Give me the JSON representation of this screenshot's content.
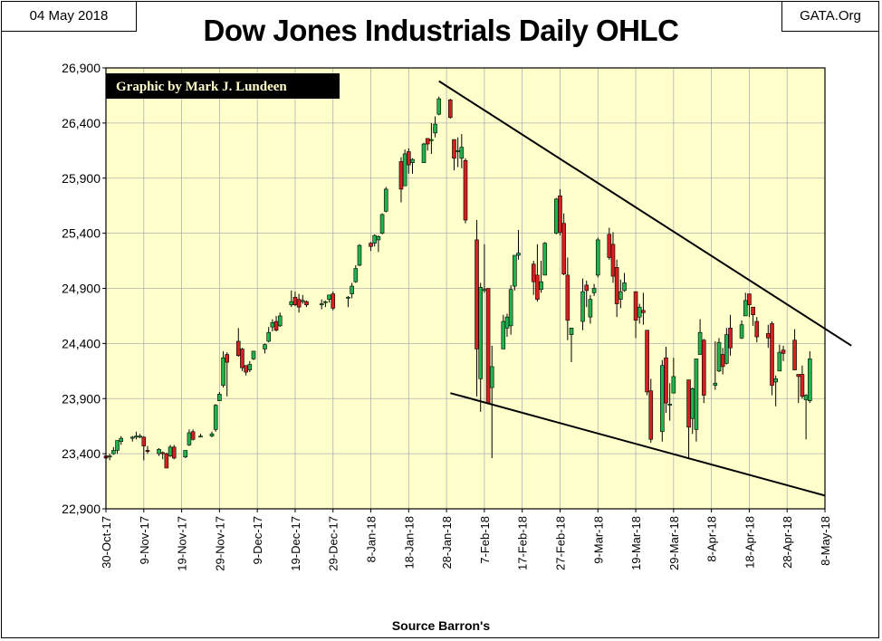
{
  "header": {
    "date": "04 May 2018",
    "site": "GATA.Org",
    "title": "Dow Jones Industrials Daily OHLC",
    "credit": "Graphic by Mark J. Lundeen",
    "source": "Source Barron's"
  },
  "colors": {
    "plot_bg": "#ffffcc",
    "up": "#22b14c",
    "down": "#d42020",
    "grid": "#b0b0b0",
    "trendline": "#000000"
  },
  "chart_data": {
    "type": "candlestick",
    "title": "Dow Jones Industrials Daily OHLC",
    "xlabel": "Source Barron's",
    "ylabel": "",
    "ylim": [
      22900,
      26900
    ],
    "yticks": [
      22900,
      23400,
      23900,
      24400,
      24900,
      25400,
      25900,
      26400,
      26900
    ],
    "ytick_labels": [
      "22,900",
      "23,400",
      "23,900",
      "24,400",
      "24,900",
      "25,400",
      "25,900",
      "26,400",
      "26,900"
    ],
    "x_start": "2017-10-30",
    "x_end": "2018-05-08",
    "xticks": [
      "2017-10-30",
      "2017-11-09",
      "2017-11-19",
      "2017-11-29",
      "2017-12-09",
      "2017-12-19",
      "2017-12-29",
      "2018-01-08",
      "2018-01-18",
      "2018-01-28",
      "2018-02-07",
      "2018-02-17",
      "2018-02-27",
      "2018-03-09",
      "2018-03-19",
      "2018-03-29",
      "2018-04-08",
      "2018-04-18",
      "2018-04-28",
      "2018-05-08"
    ],
    "xtick_labels": [
      "30-Oct-17",
      "9-Nov-17",
      "19-Nov-17",
      "29-Nov-17",
      "9-Dec-17",
      "19-Dec-17",
      "29-Dec-17",
      "8-Jan-18",
      "18-Jan-18",
      "28-Jan-18",
      "7-Feb-18",
      "17-Feb-18",
      "27-Feb-18",
      "9-Mar-18",
      "19-Mar-18",
      "29-Mar-18",
      "8-Apr-18",
      "18-Apr-18",
      "28-Apr-18",
      "8-May-18"
    ],
    "grid": true,
    "trendlines": [
      {
        "from": [
          "2018-01-26",
          26780
        ],
        "to": [
          "2018-05-15",
          24380
        ]
      },
      {
        "from": [
          "2018-01-29",
          23950
        ],
        "to": [
          "2018-05-08",
          23020
        ]
      }
    ],
    "ohlc": [
      [
        "2017-10-30",
        23380,
        23400,
        23330,
        23360
      ],
      [
        "2017-10-31",
        23370,
        23400,
        23340,
        23380
      ],
      [
        "2017-11-01",
        23400,
        23460,
        23390,
        23430
      ],
      [
        "2017-11-02",
        23430,
        23520,
        23400,
        23520
      ],
      [
        "2017-11-03",
        23510,
        23560,
        23480,
        23540
      ],
      [
        "2017-11-06",
        23540,
        23560,
        23510,
        23550
      ],
      [
        "2017-11-07",
        23560,
        23600,
        23530,
        23560
      ],
      [
        "2017-11-08",
        23560,
        23580,
        23540,
        23560
      ],
      [
        "2017-11-09",
        23550,
        23560,
        23340,
        23470
      ],
      [
        "2017-11-10",
        23430,
        23470,
        23400,
        23420
      ],
      [
        "2017-11-13",
        23400,
        23450,
        23380,
        23440
      ],
      [
        "2017-11-14",
        23410,
        23420,
        23350,
        23400
      ],
      [
        "2017-11-15",
        23400,
        23410,
        23280,
        23270
      ],
      [
        "2017-11-16",
        23380,
        23480,
        23370,
        23460
      ],
      [
        "2017-11-17",
        23460,
        23480,
        23350,
        23360
      ],
      [
        "2017-11-20",
        23370,
        23430,
        23360,
        23430
      ],
      [
        "2017-11-21",
        23480,
        23620,
        23470,
        23590
      ],
      [
        "2017-11-22",
        23600,
        23620,
        23520,
        23530
      ],
      [
        "2017-11-24",
        23560,
        23580,
        23550,
        23560
      ],
      [
        "2017-11-27",
        23560,
        23600,
        23550,
        23580
      ],
      [
        "2017-11-28",
        23620,
        23850,
        23600,
        23840
      ],
      [
        "2017-11-29",
        23880,
        23960,
        23880,
        23940
      ],
      [
        "2017-11-30",
        24020,
        24330,
        24000,
        24270
      ],
      [
        "2017-12-01",
        24300,
        24320,
        23920,
        24230
      ],
      [
        "2017-12-04",
        24420,
        24540,
        24280,
        24290
      ],
      [
        "2017-12-05",
        24350,
        24360,
        24150,
        24180
      ],
      [
        "2017-12-06",
        24200,
        24200,
        24110,
        24140
      ],
      [
        "2017-12-07",
        24160,
        24240,
        24140,
        24210
      ],
      [
        "2017-12-08",
        24260,
        24330,
        24250,
        24330
      ],
      [
        "2017-12-11",
        24350,
        24400,
        24310,
        24390
      ],
      [
        "2017-12-12",
        24420,
        24550,
        24410,
        24500
      ],
      [
        "2017-12-13",
        24550,
        24620,
        24510,
        24590
      ],
      [
        "2017-12-14",
        24600,
        24650,
        24510,
        24520
      ],
      [
        "2017-12-15",
        24560,
        24680,
        24550,
        24650
      ],
      [
        "2017-12-18",
        24750,
        24880,
        24730,
        24780
      ],
      [
        "2017-12-19",
        24820,
        24870,
        24740,
        24750
      ],
      [
        "2017-12-20",
        24800,
        24850,
        24680,
        24730
      ],
      [
        "2017-12-21",
        24780,
        24840,
        24760,
        24790
      ],
      [
        "2017-12-22",
        24780,
        24790,
        24730,
        24750
      ],
      [
        "2017-12-26",
        24750,
        24800,
        24710,
        24760
      ],
      [
        "2017-12-27",
        24770,
        24790,
        24730,
        24780
      ],
      [
        "2017-12-28",
        24800,
        24840,
        24770,
        24840
      ],
      [
        "2017-12-29",
        24850,
        24870,
        24700,
        24720
      ],
      [
        "2018-01-02",
        24810,
        24830,
        24730,
        24820
      ],
      [
        "2018-01-03",
        24850,
        24950,
        24810,
        24920
      ],
      [
        "2018-01-04",
        24960,
        25110,
        24950,
        25080
      ],
      [
        "2018-01-05",
        25110,
        25300,
        25100,
        25290
      ],
      [
        "2018-01-08",
        25310,
        25320,
        25240,
        25280
      ],
      [
        "2018-01-09",
        25310,
        25390,
        25280,
        25380
      ],
      [
        "2018-01-10",
        25340,
        25380,
        25230,
        25370
      ],
      [
        "2018-01-11",
        25400,
        25580,
        25390,
        25570
      ],
      [
        "2018-01-12",
        25600,
        25820,
        25590,
        25800
      ],
      [
        "2018-01-16",
        26050,
        26090,
        25680,
        25800
      ],
      [
        "2018-01-17",
        25830,
        26160,
        25830,
        26120
      ],
      [
        "2018-01-18",
        26140,
        26170,
        25940,
        26020
      ],
      [
        "2018-01-19",
        26040,
        26080,
        25940,
        26070
      ],
      [
        "2018-01-22",
        26040,
        26220,
        26040,
        26210
      ],
      [
        "2018-01-23",
        26260,
        26260,
        26150,
        26210
      ],
      [
        "2018-01-24",
        26250,
        26400,
        26120,
        26250
      ],
      [
        "2018-01-25",
        26310,
        26460,
        26270,
        26390
      ],
      [
        "2018-01-26",
        26480,
        26640,
        26470,
        26620
      ],
      [
        "2018-01-29",
        26610,
        26620,
        26440,
        26450
      ],
      [
        "2018-01-30",
        26250,
        26250,
        25970,
        26080
      ],
      [
        "2018-01-31",
        26150,
        26270,
        26000,
        26150
      ],
      [
        "2018-02-01",
        26080,
        26300,
        25990,
        26180
      ],
      [
        "2018-02-02",
        26060,
        26080,
        25490,
        25520
      ],
      [
        "2018-02-05",
        25340,
        25520,
        23920,
        24350
      ],
      [
        "2018-02-06",
        24080,
        24950,
        23780,
        24910
      ],
      [
        "2018-02-07",
        24890,
        25300,
        24860,
        24890
      ],
      [
        "2018-02-08",
        24900,
        24900,
        23860,
        23860
      ],
      [
        "2018-02-09",
        24000,
        24380,
        23360,
        24190
      ],
      [
        "2018-02-12",
        24350,
        24660,
        24350,
        24600
      ],
      [
        "2018-02-13",
        24540,
        24670,
        24460,
        24640
      ],
      [
        "2018-02-14",
        24560,
        24930,
        24480,
        24890
      ],
      [
        "2018-02-15",
        24920,
        25200,
        24880,
        25200
      ],
      [
        "2018-02-16",
        25200,
        25430,
        25160,
        25220
      ],
      [
        "2018-02-20",
        25120,
        25150,
        24840,
        24960
      ],
      [
        "2018-02-21",
        25020,
        25300,
        24780,
        24800
      ],
      [
        "2018-02-22",
        24890,
        25150,
        24860,
        24960
      ],
      [
        "2018-02-23",
        25020,
        25320,
        25020,
        25310
      ],
      [
        "2018-02-26",
        25400,
        25720,
        25390,
        25710
      ],
      [
        "2018-02-27",
        25740,
        25800,
        25380,
        25410
      ],
      [
        "2018-02-28",
        25490,
        25580,
        25020,
        25030
      ],
      [
        "2018-03-01",
        25020,
        25180,
        24430,
        24610
      ],
      [
        "2018-03-02",
        24480,
        24540,
        24230,
        24540
      ],
      [
        "2018-03-05",
        24600,
        24990,
        24520,
        24870
      ],
      [
        "2018-03-06",
        24930,
        24970,
        24730,
        24880
      ],
      [
        "2018-03-07",
        24640,
        24840,
        24580,
        24800
      ],
      [
        "2018-03-08",
        24860,
        24940,
        24830,
        24900
      ],
      [
        "2018-03-09",
        25020,
        25360,
        25000,
        25340
      ],
      [
        "2018-03-12",
        25390,
        25450,
        25160,
        25180
      ],
      [
        "2018-03-13",
        25300,
        25410,
        24950,
        25010
      ],
      [
        "2018-03-14",
        25090,
        25160,
        24640,
        24760
      ],
      [
        "2018-03-15",
        24800,
        24980,
        24720,
        24870
      ],
      [
        "2018-03-16",
        24880,
        25040,
        24870,
        24950
      ],
      [
        "2018-03-19",
        24870,
        24870,
        24450,
        24610
      ],
      [
        "2018-03-20",
        24640,
        24760,
        24580,
        24730
      ],
      [
        "2018-03-21",
        24700,
        24860,
        24570,
        24680
      ],
      [
        "2018-03-22",
        24520,
        24520,
        23930,
        23960
      ],
      [
        "2018-03-23",
        23970,
        24080,
        23500,
        23530
      ],
      [
        "2018-03-26",
        23600,
        24250,
        23510,
        24200
      ],
      [
        "2018-03-27",
        24270,
        24370,
        23770,
        23860
      ],
      [
        "2018-03-28",
        23850,
        24040,
        23700,
        23850
      ],
      [
        "2018-03-29",
        23950,
        24270,
        23950,
        24100
      ],
      [
        "2018-04-02",
        24070,
        24070,
        23350,
        23640
      ],
      [
        "2018-04-03",
        23720,
        24000,
        23580,
        23990
      ],
      [
        "2018-04-04",
        23620,
        24240,
        23510,
        24260
      ],
      [
        "2018-04-05",
        24300,
        24620,
        24300,
        24500
      ],
      [
        "2018-04-06",
        24430,
        24440,
        23860,
        23930
      ],
      [
        "2018-04-09",
        24020,
        24420,
        23980,
        24040
      ],
      [
        "2018-04-10",
        24150,
        24450,
        24140,
        24410
      ],
      [
        "2018-04-11",
        24300,
        24360,
        24120,
        24190
      ],
      [
        "2018-04-12",
        24220,
        24540,
        24210,
        24480
      ],
      [
        "2018-04-13",
        24540,
        24660,
        24290,
        24360
      ],
      [
        "2018-04-16",
        24450,
        24610,
        24440,
        24570
      ],
      [
        "2018-04-17",
        24650,
        24860,
        24650,
        24790
      ],
      [
        "2018-04-18",
        24850,
        24850,
        24640,
        24750
      ],
      [
        "2018-04-19",
        24730,
        24730,
        24560,
        24660
      ],
      [
        "2018-04-20",
        24600,
        24640,
        24410,
        24460
      ],
      [
        "2018-04-23",
        24490,
        24570,
        24360,
        24450
      ],
      [
        "2018-04-24",
        24580,
        24600,
        23930,
        24020
      ],
      [
        "2018-04-25",
        24050,
        24110,
        23830,
        24080
      ],
      [
        "2018-04-26",
        24150,
        24390,
        24150,
        24320
      ],
      [
        "2018-04-27",
        24340,
        24380,
        24240,
        24310
      ],
      [
        "2018-04-30",
        24430,
        24530,
        24160,
        24160
      ],
      [
        "2018-05-01",
        24120,
        24120,
        23860,
        24100
      ],
      [
        "2018-05-02",
        24120,
        24200,
        23900,
        23920
      ],
      [
        "2018-05-03",
        23890,
        23940,
        23530,
        23930
      ],
      [
        "2018-05-04",
        23880,
        24330,
        23860,
        24260
      ]
    ]
  }
}
